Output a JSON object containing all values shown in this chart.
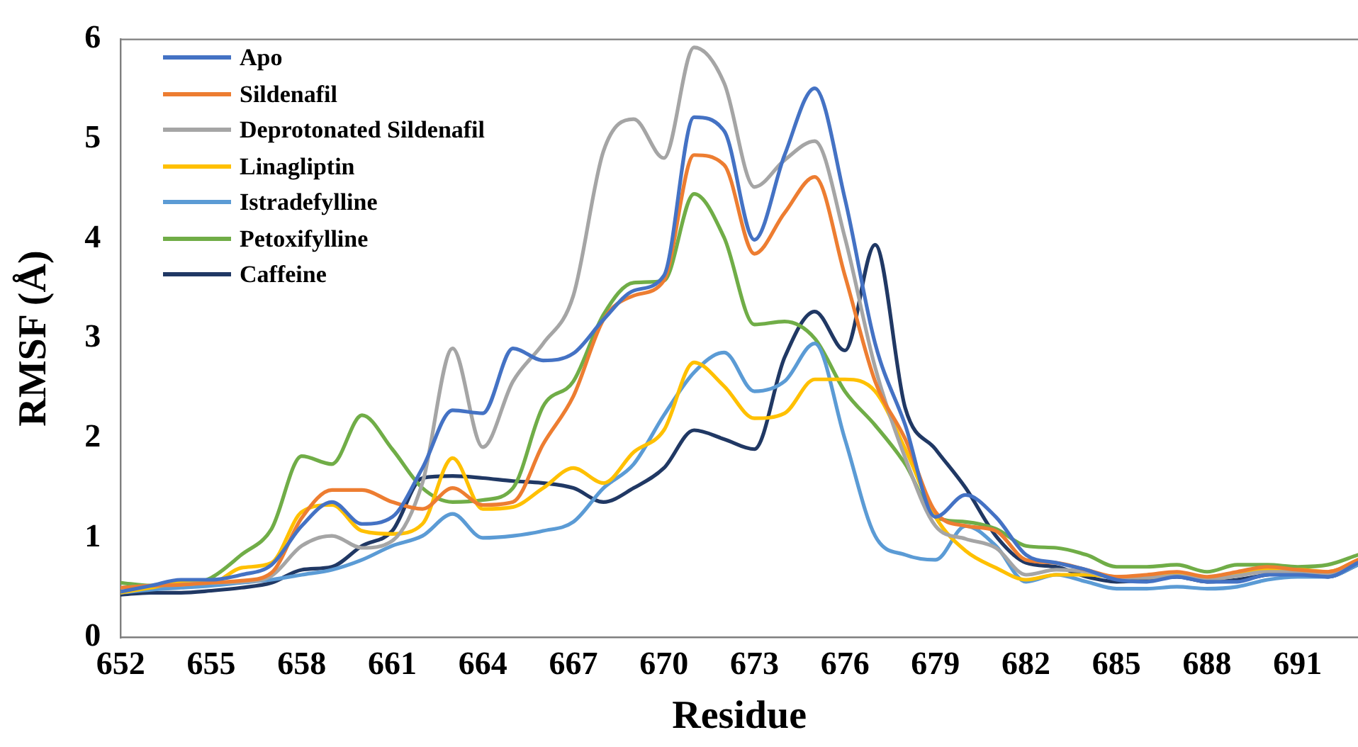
{
  "chart_data": {
    "type": "line",
    "xlabel": "Residue",
    "ylabel": "RMSF (Å)",
    "x": [
      652,
      653,
      654,
      655,
      656,
      657,
      658,
      659,
      660,
      661,
      662,
      663,
      664,
      665,
      666,
      667,
      668,
      669,
      670,
      671,
      672,
      673,
      674,
      675,
      676,
      677,
      678,
      679,
      680,
      681,
      682,
      683,
      684,
      685,
      686,
      687,
      688,
      689,
      690,
      691,
      692,
      693
    ],
    "xlim": [
      652,
      693
    ],
    "xticks": [
      652,
      655,
      658,
      661,
      664,
      667,
      670,
      673,
      676,
      679,
      682,
      685,
      688,
      691
    ],
    "ylim": [
      0,
      6
    ],
    "yticks": [
      0,
      1,
      2,
      3,
      4,
      5,
      6
    ],
    "grid": false,
    "legend": "top left",
    "line_style": "solid",
    "series": [
      {
        "name": "Apo",
        "color": "#4472c4",
        "values": [
          0.46,
          0.52,
          0.58,
          0.58,
          0.63,
          0.73,
          1.12,
          1.36,
          1.14,
          1.21,
          1.7,
          2.28,
          2.25,
          2.9,
          2.78,
          2.85,
          3.19,
          3.48,
          3.63,
          5.22,
          5.08,
          3.99,
          4.84,
          5.51,
          4.4,
          2.95,
          2.13,
          1.21,
          1.43,
          1.21,
          0.83,
          0.75,
          0.68,
          0.58,
          0.56,
          0.61,
          0.56,
          0.56,
          0.63,
          0.63,
          0.61,
          0.75
        ]
      },
      {
        "name": "Sildenafil",
        "color": "#ed7d31",
        "values": [
          0.5,
          0.52,
          0.53,
          0.55,
          0.57,
          0.65,
          1.2,
          1.48,
          1.48,
          1.36,
          1.29,
          1.5,
          1.33,
          1.36,
          1.94,
          2.42,
          3.19,
          3.43,
          3.58,
          4.84,
          4.74,
          3.85,
          4.26,
          4.62,
          3.63,
          2.57,
          1.99,
          1.26,
          1.12,
          1.07,
          0.78,
          0.75,
          0.68,
          0.61,
          0.63,
          0.66,
          0.61,
          0.66,
          0.71,
          0.68,
          0.66,
          0.78
        ]
      },
      {
        "name": "Deprotonated Sildenafil",
        "color": "#a5a5a5",
        "values": [
          0.5,
          0.52,
          0.53,
          0.55,
          0.56,
          0.62,
          0.92,
          1.02,
          0.9,
          0.97,
          1.55,
          2.9,
          1.91,
          2.57,
          2.95,
          3.43,
          4.88,
          5.2,
          4.81,
          5.92,
          5.56,
          4.52,
          4.79,
          4.98,
          4.01,
          2.71,
          1.8,
          1.12,
          0.99,
          0.9,
          0.63,
          0.68,
          0.66,
          0.6,
          0.6,
          0.62,
          0.58,
          0.62,
          0.66,
          0.66,
          0.64,
          0.76
        ]
      },
      {
        "name": "Linagliptin",
        "color": "#ffc000",
        "values": [
          0.45,
          0.5,
          0.55,
          0.55,
          0.7,
          0.75,
          1.26,
          1.33,
          1.07,
          1.04,
          1.14,
          1.8,
          1.29,
          1.31,
          1.5,
          1.7,
          1.55,
          1.86,
          2.08,
          2.76,
          2.52,
          2.2,
          2.25,
          2.59,
          2.59,
          2.47,
          1.89,
          1.21,
          0.87,
          0.7,
          0.58,
          0.63,
          0.63,
          0.61,
          0.61,
          0.63,
          0.58,
          0.63,
          0.68,
          0.68,
          0.66,
          0.78
        ]
      },
      {
        "name": "Istradefylline",
        "color": "#5b9bd5",
        "values": [
          0.45,
          0.48,
          0.5,
          0.52,
          0.55,
          0.58,
          0.63,
          0.68,
          0.78,
          0.92,
          1.02,
          1.24,
          1.0,
          1.02,
          1.07,
          1.16,
          1.5,
          1.74,
          2.23,
          2.66,
          2.86,
          2.47,
          2.57,
          2.95,
          1.99,
          1.02,
          0.83,
          0.78,
          1.12,
          0.92,
          0.56,
          0.63,
          0.56,
          0.49,
          0.49,
          0.51,
          0.49,
          0.51,
          0.58,
          0.61,
          0.61,
          0.73
        ]
      },
      {
        "name": "Petoxifylline",
        "color": "#70ad47",
        "values": [
          0.55,
          0.52,
          0.52,
          0.6,
          0.83,
          1.09,
          1.82,
          1.74,
          2.23,
          1.89,
          1.5,
          1.36,
          1.38,
          1.5,
          2.32,
          2.57,
          3.24,
          3.56,
          3.58,
          4.45,
          4.01,
          3.14,
          3.17,
          3.0,
          2.47,
          2.13,
          1.74,
          1.21,
          1.16,
          1.09,
          0.92,
          0.9,
          0.83,
          0.71,
          0.71,
          0.73,
          0.66,
          0.73,
          0.73,
          0.71,
          0.73,
          0.83
        ]
      },
      {
        "name": "Caffeine",
        "color": "#203864",
        "values": [
          0.43,
          0.45,
          0.45,
          0.47,
          0.5,
          0.55,
          0.68,
          0.71,
          0.92,
          1.07,
          1.6,
          1.62,
          1.6,
          1.57,
          1.55,
          1.5,
          1.36,
          1.5,
          1.7,
          2.08,
          1.99,
          1.89,
          2.81,
          3.27,
          2.88,
          3.94,
          2.3,
          1.89,
          1.5,
          1.02,
          0.75,
          0.71,
          0.61,
          0.56,
          0.58,
          0.61,
          0.56,
          0.58,
          0.63,
          0.66,
          0.61,
          0.73
        ]
      }
    ]
  }
}
